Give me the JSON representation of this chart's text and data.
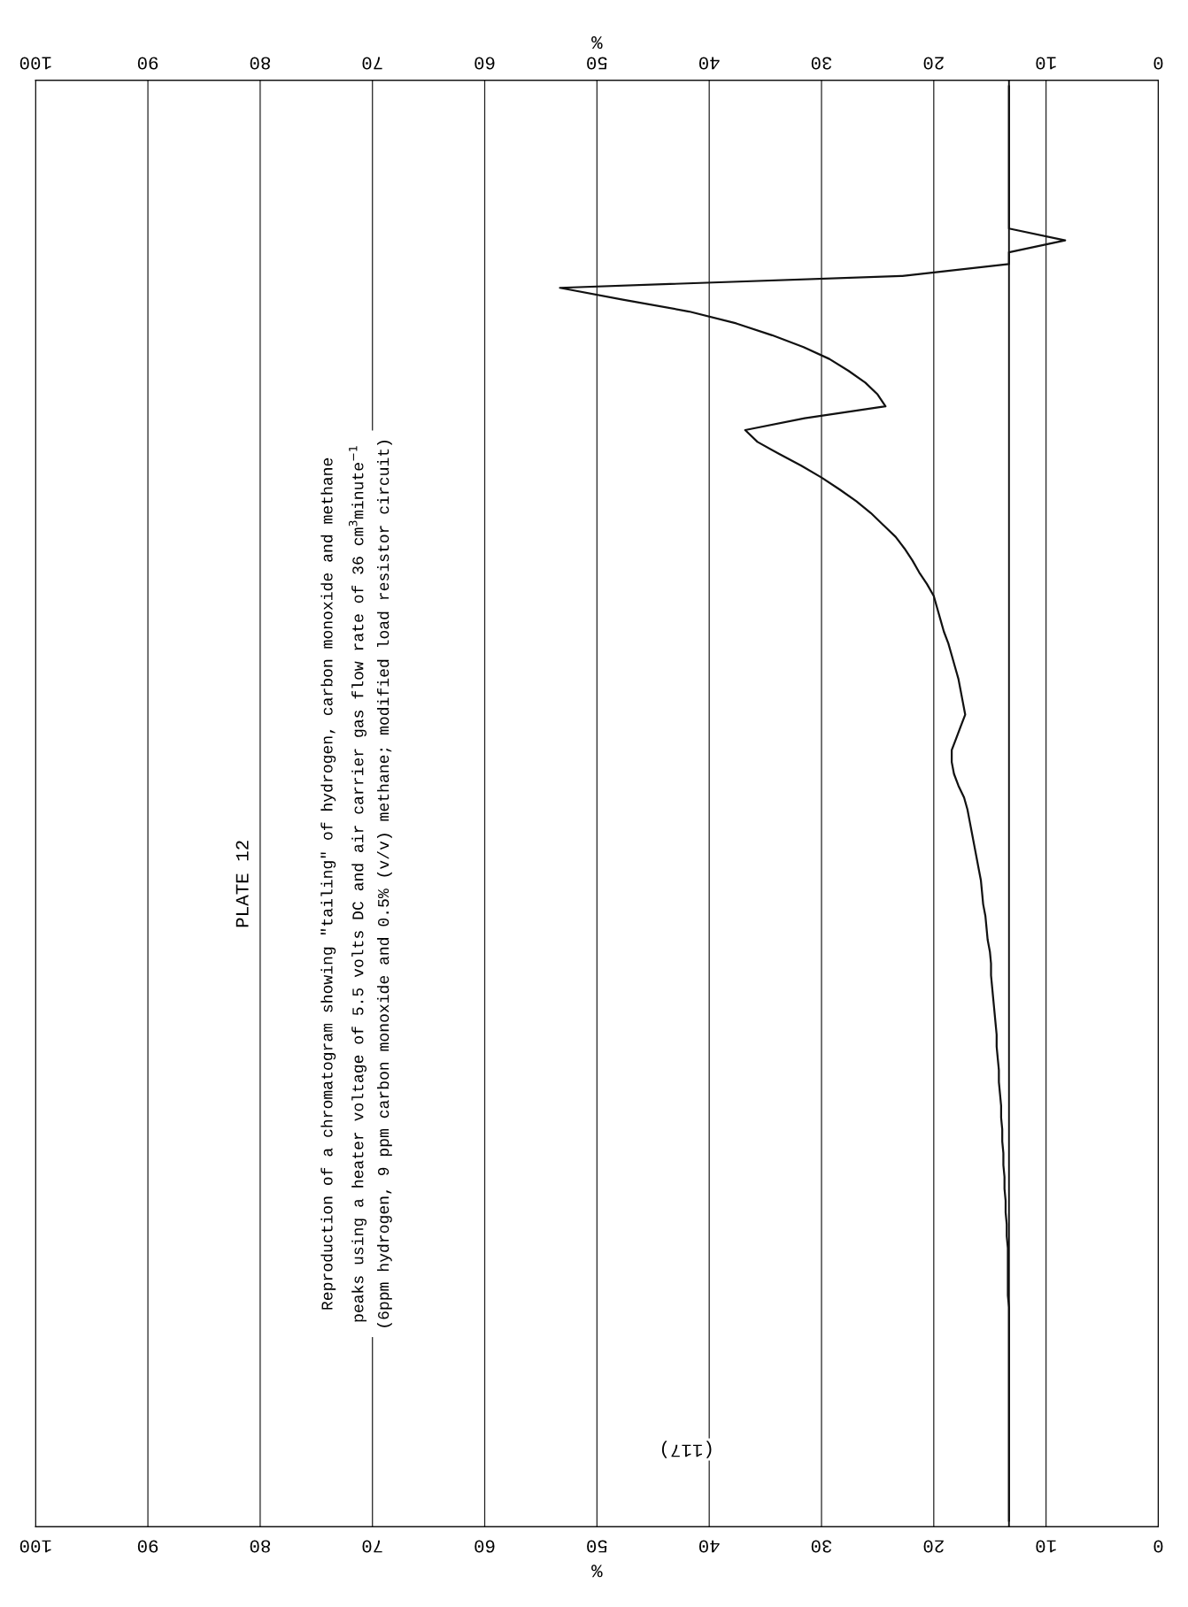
{
  "chart_data": {
    "type": "line",
    "orientation": "horizontal",
    "title": "PLATE 12",
    "annotations": [
      "Reproduction of a chromatogram showing \"tailing\" of hydrogen, carbon monoxide and methane\npeaks using a heater voltage of 5.5 volts DC and air carrier gas flow rate of 36 cm$^{3}$minute$^{−1}$\n(6ppm hydrogen, 9 ppm carbon monoxide and 0.5% (v/v) methane; modified load resistor circuit)",
      "(117)"
    ],
    "xlabel": "%",
    "x2label": "%",
    "categories": [
      null,
      null,
      null,
      null,
      null,
      null,
      null,
      null,
      null,
      null,
      null,
      null,
      null,
      null,
      null,
      null,
      null,
      null,
      null,
      null,
      null,
      null,
      null,
      null,
      null,
      null,
      null,
      null,
      null,
      null,
      null,
      null,
      null,
      null,
      null,
      null,
      null,
      null,
      null,
      null,
      null,
      null,
      null,
      null,
      null,
      null,
      null,
      null,
      null,
      null,
      null,
      null,
      null,
      null,
      null,
      null,
      null,
      null,
      null,
      null,
      null,
      null,
      null,
      null,
      null,
      null,
      null,
      null,
      null,
      null,
      null,
      null,
      null,
      null,
      null,
      null,
      null,
      null,
      null,
      null,
      null,
      null,
      null,
      null,
      null,
      null,
      null,
      null,
      null,
      null,
      null,
      null,
      null,
      null,
      null,
      null,
      null,
      null,
      null,
      null,
      null,
      null,
      null,
      null,
      null,
      null,
      null,
      null,
      null,
      null,
      null,
      null,
      null,
      null,
      null,
      null,
      null,
      null,
      null,
      null,
      null,
      null
    ],
    "series": [
      {
        "color": "#111111",
        "values": [
          13.3,
          13.3,
          13.3,
          13.3,
          13.3,
          13.3,
          13.3,
          13.3,
          13.3,
          13.3,
          13.3,
          13.3,
          13.3,
          8.3,
          13.3,
          13.3,
          22.8,
          53.3,
          47.7,
          41.8,
          37.6,
          34.4,
          31.6,
          29.3,
          27.6,
          26.1,
          25.0,
          24.3,
          31.5,
          36.8,
          35.7,
          33.8,
          31.8,
          30.0,
          28.4,
          26.9,
          25.6,
          24.5,
          23.4,
          22.6,
          21.9,
          21.3,
          20.6,
          20.0,
          19.7,
          19.4,
          19.1,
          18.7,
          18.4,
          18.1,
          17.8,
          17.6,
          17.4,
          17.2,
          17.6,
          18.0,
          18.4,
          18.4,
          18.2,
          17.8,
          17.3,
          17.0,
          16.8,
          16.6,
          16.4,
          16.2,
          16.0,
          15.8,
          15.7,
          15.6,
          15.4,
          15.3,
          15.2,
          15.0,
          14.9,
          14.9,
          14.8,
          14.7,
          14.6,
          14.5,
          14.4,
          14.4,
          14.3,
          14.2,
          14.2,
          14.1,
          14.0,
          14.0,
          13.9,
          13.9,
          13.8,
          13.8,
          13.7,
          13.7,
          13.6,
          13.6,
          13.5,
          13.5,
          13.4,
          13.4,
          13.4,
          13.4,
          13.4,
          13.3,
          13.3,
          13.3,
          13.3,
          13.3,
          13.3,
          13.3,
          13.3,
          13.3,
          13.3,
          13.3,
          13.3,
          13.3,
          13.3,
          13.3,
          13.3,
          13.3,
          13.3,
          13.3
        ]
      }
    ],
    "ref_lines": [
      {
        "axis": "x",
        "value": 13.3,
        "color": "#111111"
      }
    ],
    "xlim": [
      100,
      0
    ],
    "xticks": [
      0,
      10,
      20,
      30,
      40,
      50,
      60,
      70,
      80,
      90,
      100
    ],
    "x2lim": [
      100,
      0
    ],
    "x2ticks": [
      0,
      10,
      20,
      30,
      40,
      50,
      60,
      70,
      80,
      90,
      100
    ],
    "grid": "x",
    "tick_labels": "x",
    "marker": "none",
    "line_style": "solid",
    "legend": false
  }
}
